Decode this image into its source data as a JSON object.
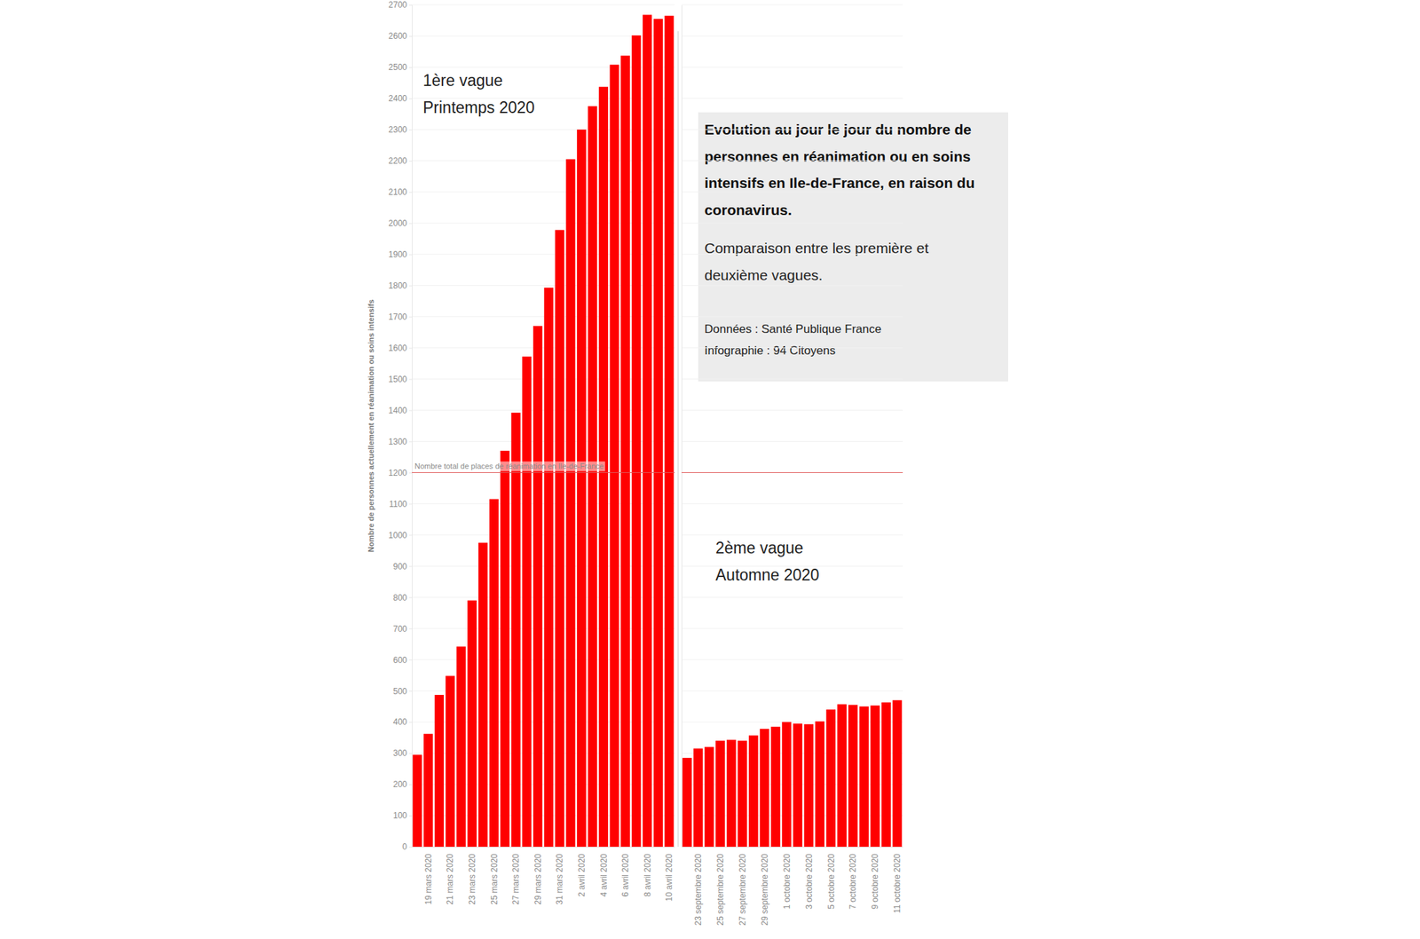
{
  "chart_data": [
    {
      "type": "bar",
      "title": "1ère vague",
      "subtitle": "Printemps 2020",
      "y_label": "Nombre de personnes actuellement en réanimation ou soins intensifs",
      "categories": [
        null,
        "19 mars 2020",
        null,
        "21 mars 2020",
        null,
        "23 mars 2020",
        null,
        "25 mars 2020",
        null,
        "27 mars 2020",
        null,
        "29 mars 2020",
        null,
        "31 mars 2020",
        null,
        "2 avril 2020",
        null,
        "4 avril 2020",
        null,
        "6 avril 2020",
        null,
        "8 avril 2020",
        null,
        "10 avril 2020"
      ],
      "values": [
        295,
        362,
        487,
        548,
        642,
        790,
        975,
        1115,
        1270,
        1392,
        1572,
        1670,
        1793,
        1978,
        2205,
        2300,
        2375,
        2437,
        2508,
        2537,
        2602,
        2668,
        2655,
        2665
      ],
      "color": "#ff0000",
      "ylim": [
        0,
        2700
      ],
      "yticks": [
        0,
        100,
        200,
        300,
        400,
        500,
        600,
        700,
        800,
        900,
        1000,
        1100,
        1200,
        1300,
        1400,
        1500,
        1600,
        1700,
        1800,
        1900,
        2000,
        2100,
        2200,
        2300,
        2400,
        2500,
        2600,
        2700
      ],
      "grid": true,
      "reference_line": {
        "value": 1200,
        "label": "Nombre total de places de réanimation en Ile-de-France"
      },
      "annotation_box": {
        "title_lines": [
          "Evolution au jour le jour du nombre de",
          "personnes en réanimation ou en soins",
          "intensifs en Ile-de-France, en raison du",
          "coronavirus."
        ],
        "text_lines": [
          "Comparaison entre les première et",
          "deuxième vagues."
        ],
        "source": "Données : Santé Publique France",
        "credit": "Infographie : 94 Citoyens"
      }
    },
    {
      "type": "bar",
      "title": "2ème vague",
      "subtitle": "Automne 2020",
      "categories": [
        null,
        "23 septembre 2020",
        null,
        "25 septembre 2020",
        null,
        "27 septembre 2020",
        null,
        "29 septembre 2020",
        null,
        "1 octobre 2020",
        null,
        "3 octobre 2020",
        null,
        "5 octobre 2020",
        null,
        "7 octobre 2020",
        null,
        "9 octobre 2020",
        null,
        "11 octobre 2020"
      ],
      "values": [
        285,
        315,
        320,
        340,
        343,
        340,
        357,
        378,
        385,
        400,
        395,
        393,
        402,
        440,
        457,
        455,
        450,
        453,
        463,
        470
      ],
      "color": "#ff0000",
      "ylim": [
        0,
        2700
      ],
      "yticks": [
        0,
        100,
        200,
        300,
        400,
        500,
        600,
        700,
        800,
        900,
        1000,
        1100,
        1200,
        1300,
        1400,
        1500,
        1600,
        1700,
        1800,
        1900,
        2000,
        2100,
        2200,
        2300,
        2400,
        2500,
        2600,
        2700
      ],
      "grid": true,
      "tick_labels": "x",
      "reference_line": {
        "value": 1200
      }
    }
  ]
}
